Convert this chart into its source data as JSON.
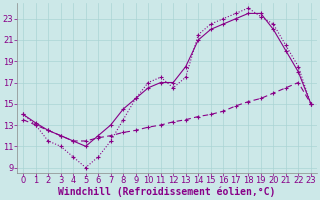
{
  "background_color": "#cce8e8",
  "line_color": "#880088",
  "grid_color": "#aad4d4",
  "xlabel": "Windchill (Refroidissement éolien,°C)",
  "xlabel_fontsize": 7.0,
  "tick_label_color": "#880088",
  "tick_fontsize": 6.0,
  "xlim": [
    -0.5,
    23.5
  ],
  "ylim": [
    8.5,
    24.5
  ],
  "yticks": [
    9,
    11,
    13,
    15,
    17,
    19,
    21,
    23
  ],
  "xticks": [
    0,
    1,
    2,
    3,
    4,
    5,
    6,
    7,
    8,
    9,
    10,
    11,
    12,
    13,
    14,
    15,
    16,
    17,
    18,
    19,
    20,
    21,
    22,
    23
  ],
  "curve1_x": [
    0,
    1,
    2,
    3,
    4,
    5,
    6,
    7,
    8,
    9,
    10,
    11,
    12,
    13,
    14,
    15,
    16,
    17,
    18,
    19,
    20,
    21,
    22,
    23
  ],
  "curve1_y": [
    14.0,
    13.0,
    11.5,
    11.0,
    10.0,
    9.0,
    10.0,
    11.5,
    13.5,
    15.5,
    17.0,
    17.5,
    16.5,
    17.5,
    21.5,
    22.5,
    23.0,
    23.5,
    24.0,
    23.2,
    22.5,
    20.5,
    18.5,
    15.0
  ],
  "curve2_x": [
    0,
    1,
    2,
    3,
    4,
    5,
    6,
    7,
    8,
    9,
    10,
    11,
    12,
    13,
    14,
    15,
    16,
    17,
    18,
    19,
    20,
    21,
    22,
    23
  ],
  "curve2_y": [
    14.0,
    13.2,
    12.5,
    12.0,
    11.5,
    11.0,
    12.0,
    13.0,
    14.5,
    15.5,
    16.5,
    17.0,
    17.0,
    18.5,
    21.0,
    22.0,
    22.5,
    23.0,
    23.5,
    23.5,
    22.0,
    20.0,
    18.0,
    15.0
  ],
  "curve3_x": [
    0,
    1,
    2,
    3,
    4,
    5,
    6,
    7,
    8,
    9,
    10,
    11,
    12,
    13,
    14,
    15,
    16,
    17,
    18,
    19,
    20,
    21,
    22,
    23
  ],
  "curve3_y": [
    13.5,
    13.0,
    12.5,
    12.0,
    11.5,
    11.5,
    11.8,
    12.0,
    12.3,
    12.5,
    12.8,
    13.0,
    13.3,
    13.5,
    13.8,
    14.0,
    14.3,
    14.8,
    15.2,
    15.5,
    16.0,
    16.5,
    17.0,
    15.0
  ]
}
